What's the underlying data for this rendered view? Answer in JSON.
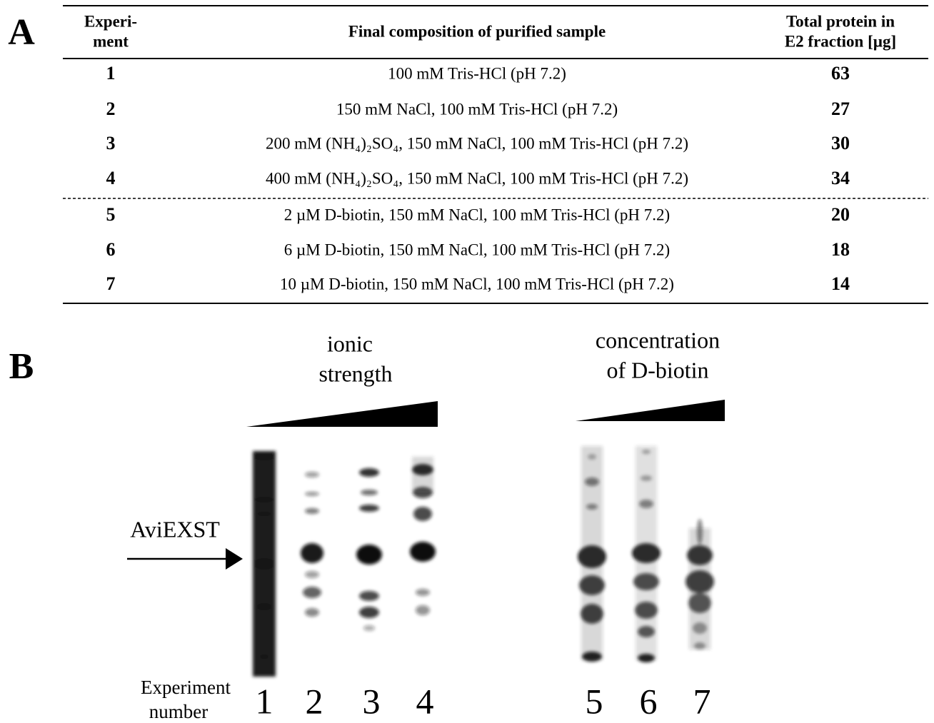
{
  "panel_a": {
    "label": "A",
    "headers": [
      [
        "Experi-",
        "ment"
      ],
      [
        "Final composition of purified sample"
      ],
      [
        "Total protein in",
        "E2 fraction [µg]"
      ]
    ],
    "rows": [
      [
        "1",
        "100 mM Tris-HCl (pH 7.2)",
        "63"
      ],
      [
        "2",
        "150 mM NaCl, 100 mM Tris-HCl (pH 7.2)",
        "27"
      ],
      [
        "3",
        "200 mM (NH₄)₂SO₄, 150 mM NaCl, 100 mM Tris-HCl (pH 7.2)",
        "30"
      ],
      [
        "4",
        "400 mM (NH₄)₂SO₄, 150 mM NaCl, 100 mM Tris-HCl (pH 7.2)",
        "34"
      ],
      [
        "5",
        "2 µM D-biotin, 150 mM NaCl, 100 mM Tris-HCl (pH 7.2)",
        "20"
      ],
      [
        "6",
        "6 µM D-biotin, 150 mM NaCl, 100 mM Tris-HCl (pH 7.2)",
        "18"
      ],
      [
        "7",
        "10 µM D-biotin, 150 mM NaCl, 100 mM Tris-HCl (pH 7.2)",
        "14"
      ]
    ]
  },
  "panel_b": {
    "label": "B",
    "gradient_left": [
      "ionic",
      "strength"
    ],
    "gradient_right": [
      "concentration",
      "of D-biotin"
    ],
    "arrow_label": "AviEXST",
    "axis_label": [
      "Experiment",
      "number"
    ],
    "lanes": [
      "1",
      "2",
      "3",
      "4",
      "5",
      "6",
      "7"
    ]
  }
}
